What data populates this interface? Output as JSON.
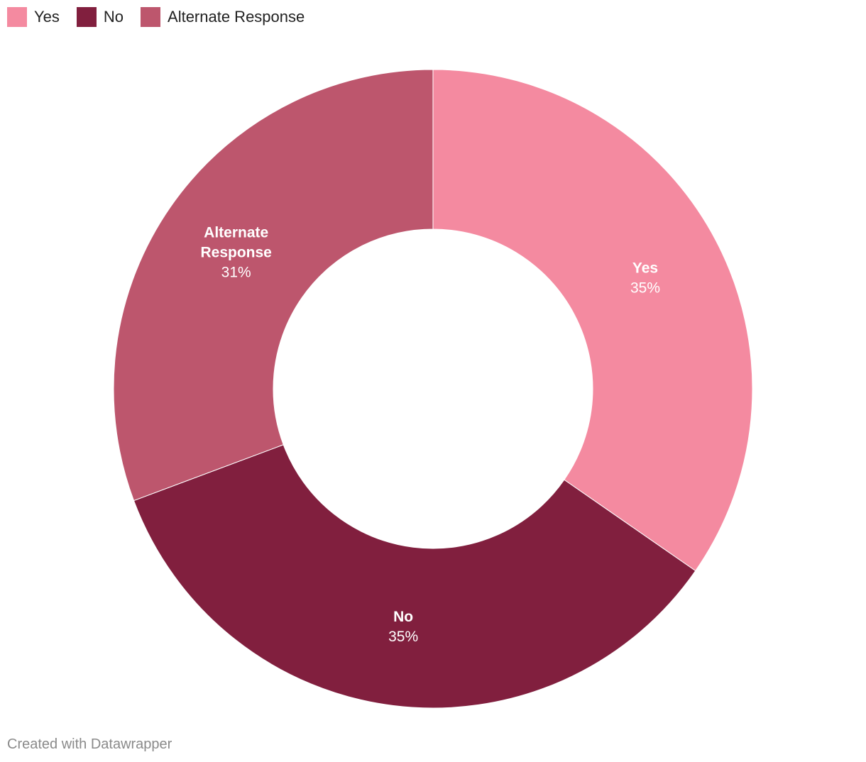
{
  "legend": {
    "items": [
      {
        "label": "Yes",
        "color": "#f48aa0"
      },
      {
        "label": "No",
        "color": "#811f3e"
      },
      {
        "label": "Alternate Response",
        "color": "#bd566d"
      }
    ]
  },
  "chart_data": {
    "type": "pie",
    "variant": "donut",
    "legend_position": "top-left",
    "slices": [
      {
        "name": [
          "Yes"
        ],
        "label": "Yes",
        "value": 35,
        "value_label": "35%",
        "color": "#f48aa0"
      },
      {
        "name": [
          "No"
        ],
        "label": "No",
        "value": 35,
        "value_label": "35%",
        "color": "#811f3e"
      },
      {
        "name": [
          "Alternate",
          "Response"
        ],
        "label": "Alternate Response",
        "value": 31,
        "value_label": "31%",
        "color": "#bd566d"
      }
    ]
  },
  "footer": {
    "credit": "Created with Datawrapper"
  }
}
